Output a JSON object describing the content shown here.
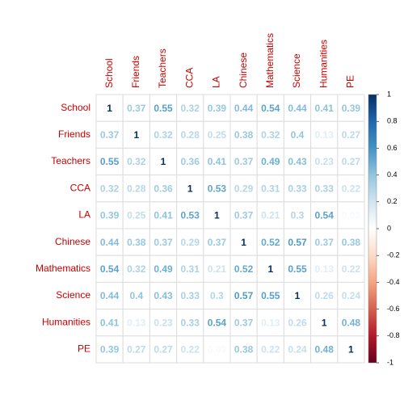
{
  "chart_data": {
    "type": "corrplot",
    "labels": [
      "School",
      "Friends",
      "Teachers",
      "CCA",
      "LA",
      "Chinese",
      "Mathematics",
      "Science",
      "Humanities",
      "PE"
    ],
    "matrix": [
      [
        1,
        0.37,
        0.55,
        0.32,
        0.39,
        0.44,
        0.54,
        0.44,
        0.41,
        0.39
      ],
      [
        0.37,
        1,
        0.32,
        0.28,
        0.25,
        0.38,
        0.32,
        0.4,
        0.13,
        0.27
      ],
      [
        0.55,
        0.32,
        1,
        0.36,
        0.41,
        0.37,
        0.49,
        0.43,
        0.23,
        0.27
      ],
      [
        0.32,
        0.28,
        0.36,
        1,
        0.53,
        0.29,
        0.31,
        0.33,
        0.33,
        0.22
      ],
      [
        0.39,
        0.25,
        0.41,
        0.53,
        1,
        0.37,
        0.21,
        0.3,
        0.54,
        0.03
      ],
      [
        0.44,
        0.38,
        0.37,
        0.29,
        0.37,
        1,
        0.52,
        0.57,
        0.37,
        0.38
      ],
      [
        0.54,
        0.32,
        0.49,
        0.31,
        0.21,
        0.52,
        1,
        0.55,
        0.13,
        0.22
      ],
      [
        0.44,
        0.4,
        0.43,
        0.33,
        0.3,
        0.57,
        0.55,
        1,
        0.26,
        0.24
      ],
      [
        0.41,
        0.13,
        0.23,
        0.33,
        0.54,
        0.37,
        0.13,
        0.26,
        1,
        0.48
      ],
      [
        0.39,
        0.27,
        0.27,
        0.22,
        0.03,
        0.38,
        0.22,
        0.24,
        0.48,
        1
      ]
    ],
    "colorscale": [
      "#67001F",
      "#B2182B",
      "#D6604D",
      "#F4A582",
      "#FDDBC7",
      "#FFFFFF",
      "#D1E5F0",
      "#92C5DE",
      "#4393C3",
      "#2166AC",
      "#053061"
    ],
    "label_color": "#cc0000",
    "clim": [
      -1,
      1
    ],
    "cticks": [
      1,
      0.8,
      0.6,
      0.4,
      0.2,
      0,
      -0.2,
      -0.4,
      -0.6,
      -0.8,
      -1
    ]
  }
}
